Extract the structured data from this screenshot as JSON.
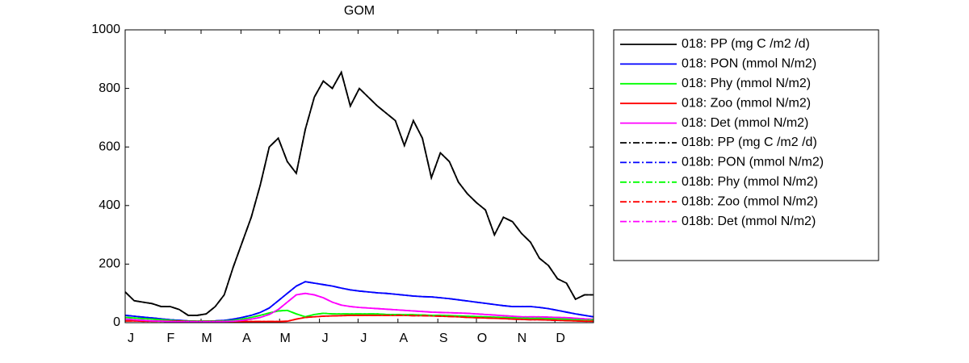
{
  "chart_data": {
    "type": "line",
    "title": "GOM",
    "x": [
      1,
      8,
      15,
      22,
      29,
      36,
      43,
      50,
      57,
      64,
      71,
      78,
      85,
      92,
      99,
      106,
      113,
      120,
      127,
      134,
      141,
      148,
      155,
      162,
      169,
      176,
      183,
      190,
      197,
      204,
      211,
      218,
      225,
      232,
      239,
      246,
      253,
      260,
      267,
      274,
      281,
      288,
      295,
      302,
      309,
      316,
      323,
      330,
      337,
      344,
      351,
      358,
      365
    ],
    "xlim": [
      1,
      365
    ],
    "xticks": [
      {
        "value": 1,
        "label": "J"
      },
      {
        "value": 32,
        "label": "F"
      },
      {
        "value": 60,
        "label": "M"
      },
      {
        "value": 91,
        "label": "A"
      },
      {
        "value": 121,
        "label": "M"
      },
      {
        "value": 152,
        "label": "J"
      },
      {
        "value": 182,
        "label": "J"
      },
      {
        "value": 213,
        "label": "A"
      },
      {
        "value": 244,
        "label": "S"
      },
      {
        "value": 274,
        "label": "O"
      },
      {
        "value": 305,
        "label": "N"
      },
      {
        "value": 335,
        "label": "D"
      }
    ],
    "ylim": [
      0,
      1000
    ],
    "yticks": [
      0,
      200,
      400,
      600,
      800,
      1000
    ],
    "series": [
      {
        "name": "018: PP (mg C /m2 /d)",
        "color": "#000000",
        "line_style": "solid",
        "values": [
          105,
          75,
          70,
          65,
          55,
          55,
          45,
          25,
          25,
          30,
          55,
          95,
          190,
          275,
          360,
          470,
          600,
          630,
          550,
          510,
          660,
          770,
          825,
          800,
          855,
          740,
          800,
          770,
          740,
          715,
          690,
          605,
          690,
          630,
          495,
          580,
          550,
          480,
          440,
          410,
          385,
          300,
          360,
          345,
          305,
          275,
          220,
          195,
          150,
          135,
          80,
          95,
          95
        ]
      },
      {
        "name": "018: PON (mmol N/m2)",
        "color": "#0000ff",
        "line_style": "solid",
        "values": [
          25,
          22,
          19,
          16,
          13,
          10,
          8,
          6,
          5,
          5,
          6,
          8,
          12,
          18,
          25,
          35,
          50,
          75,
          100,
          125,
          140,
          135,
          130,
          125,
          118,
          112,
          108,
          105,
          102,
          100,
          97,
          94,
          91,
          89,
          88,
          85,
          82,
          78,
          74,
          70,
          66,
          62,
          58,
          55,
          55,
          55,
          52,
          48,
          42,
          36,
          30,
          25,
          20
        ]
      },
      {
        "name": "018: Phy (mmol N/m2)",
        "color": "#00ff00",
        "line_style": "solid",
        "values": [
          18,
          16,
          14,
          12,
          10,
          8,
          6,
          5,
          5,
          5,
          5,
          6,
          8,
          12,
          18,
          25,
          33,
          40,
          42,
          30,
          20,
          28,
          32,
          30,
          30,
          30,
          30,
          30,
          30,
          28,
          28,
          27,
          27,
          26,
          25,
          25,
          24,
          23,
          22,
          21,
          20,
          19,
          18,
          17,
          16,
          15,
          15,
          14,
          13,
          12,
          11,
          10,
          10
        ]
      },
      {
        "name": "018: Zoo (mmol N/m2)",
        "color": "#ff0000",
        "line_style": "solid",
        "values": [
          6,
          6,
          5,
          5,
          5,
          5,
          5,
          4,
          4,
          4,
          4,
          4,
          4,
          4,
          4,
          4,
          4,
          4,
          5,
          12,
          18,
          20,
          22,
          23,
          24,
          25,
          25,
          25,
          25,
          25,
          25,
          25,
          24,
          24,
          23,
          22,
          21,
          20,
          18,
          17,
          16,
          15,
          14,
          12,
          11,
          10,
          10,
          9,
          8,
          7,
          6,
          5,
          5
        ]
      },
      {
        "name": "018: Det (mmol N/m2)",
        "color": "#ff00ff",
        "line_style": "solid",
        "values": [
          12,
          10,
          8,
          6,
          5,
          4,
          3,
          3,
          3,
          3,
          3,
          4,
          5,
          8,
          12,
          18,
          28,
          45,
          70,
          95,
          100,
          95,
          85,
          70,
          60,
          55,
          52,
          50,
          48,
          46,
          44,
          42,
          40,
          38,
          36,
          35,
          34,
          33,
          32,
          30,
          28,
          26,
          24,
          22,
          20,
          20,
          20,
          19,
          18,
          17,
          15,
          13,
          12
        ]
      },
      {
        "name": "018b: PP (mg C /m2 /d)",
        "color": "#000000",
        "line_style": "dashdot",
        "values": [
          105,
          75,
          70,
          65,
          55,
          55,
          45,
          25,
          25,
          30,
          55,
          95,
          190,
          275,
          360,
          470,
          600,
          630,
          550,
          510,
          660,
          770,
          825,
          800,
          855,
          740,
          800,
          770,
          740,
          715,
          690,
          605,
          690,
          630,
          495,
          580,
          550,
          480,
          440,
          410,
          385,
          300,
          360,
          345,
          305,
          275,
          220,
          195,
          150,
          135,
          80,
          95,
          95
        ]
      },
      {
        "name": "018b: PON (mmol N/m2)",
        "color": "#0000ff",
        "line_style": "dashdot",
        "values": [
          25,
          22,
          19,
          16,
          13,
          10,
          8,
          6,
          5,
          5,
          6,
          8,
          12,
          18,
          25,
          35,
          50,
          75,
          100,
          125,
          140,
          135,
          130,
          125,
          118,
          112,
          108,
          105,
          102,
          100,
          97,
          94,
          91,
          89,
          88,
          85,
          82,
          78,
          74,
          70,
          66,
          62,
          58,
          55,
          55,
          55,
          52,
          48,
          42,
          36,
          30,
          25,
          20
        ]
      },
      {
        "name": "018b: Phy (mmol N/m2)",
        "color": "#00ff00",
        "line_style": "dashdot",
        "values": [
          18,
          16,
          14,
          12,
          10,
          8,
          6,
          5,
          5,
          5,
          5,
          6,
          8,
          12,
          18,
          25,
          33,
          40,
          42,
          30,
          20,
          28,
          32,
          30,
          30,
          30,
          30,
          30,
          30,
          28,
          28,
          27,
          27,
          26,
          25,
          25,
          24,
          23,
          22,
          21,
          20,
          19,
          18,
          17,
          16,
          15,
          15,
          14,
          13,
          12,
          11,
          10,
          10
        ]
      },
      {
        "name": "018b: Zoo (mmol N/m2)",
        "color": "#ff0000",
        "line_style": "dashdot",
        "values": [
          6,
          6,
          5,
          5,
          5,
          5,
          5,
          4,
          4,
          4,
          4,
          4,
          4,
          4,
          4,
          4,
          4,
          4,
          5,
          12,
          18,
          20,
          22,
          23,
          24,
          25,
          25,
          25,
          25,
          25,
          25,
          25,
          24,
          24,
          23,
          22,
          21,
          20,
          18,
          17,
          16,
          15,
          14,
          12,
          11,
          10,
          10,
          9,
          8,
          7,
          6,
          5,
          5
        ]
      },
      {
        "name": "018b: Det (mmol N/m2)",
        "color": "#ff00ff",
        "line_style": "dashdot",
        "values": [
          12,
          10,
          8,
          6,
          5,
          4,
          3,
          3,
          3,
          3,
          3,
          4,
          5,
          8,
          12,
          18,
          28,
          45,
          70,
          95,
          100,
          95,
          85,
          70,
          60,
          55,
          52,
          50,
          48,
          46,
          44,
          42,
          40,
          38,
          36,
          35,
          34,
          33,
          32,
          30,
          28,
          26,
          24,
          22,
          20,
          20,
          20,
          19,
          18,
          17,
          15,
          13,
          12
        ]
      }
    ],
    "legend": "outside-right"
  }
}
